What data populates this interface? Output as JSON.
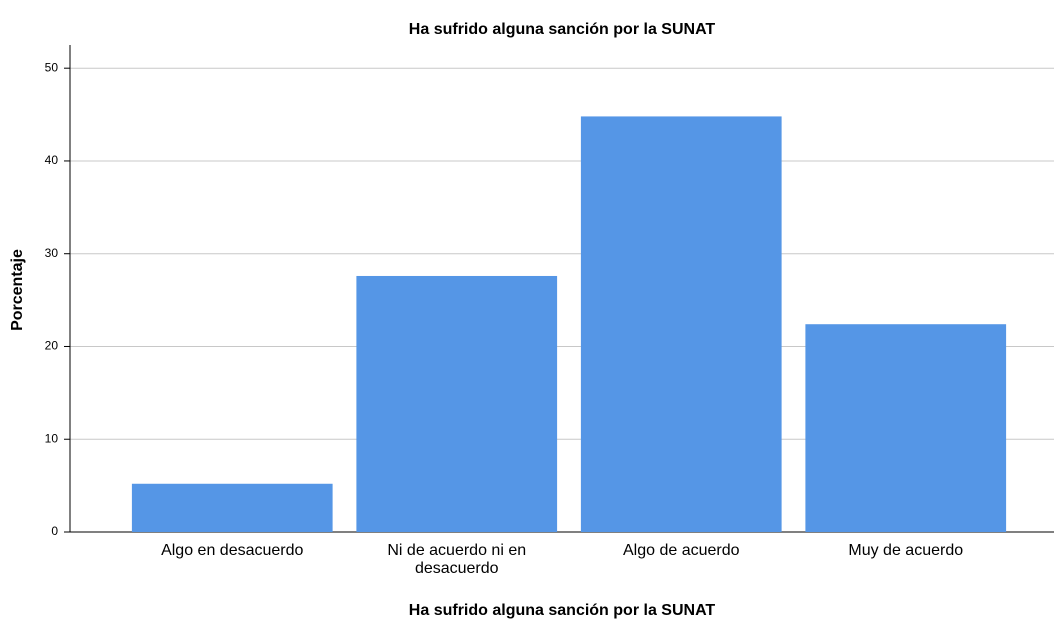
{
  "chart_data": {
    "type": "bar",
    "title": "Ha sufrido alguna sanción por la SUNAT",
    "x_label": "Ha sufrido alguna sanción por la SUNAT",
    "y_label": "Porcentaje",
    "categories": [
      "Algo en desacuerdo",
      "Ni de acuerdo ni en desacuerdo",
      "Algo de acuerdo",
      "Muy de acuerdo"
    ],
    "values": [
      5.2,
      27.6,
      44.8,
      22.4
    ],
    "color": "#5596e6",
    "ylim": [
      0,
      52.5
    ],
    "yticks": [
      0,
      10,
      20,
      30,
      40,
      50
    ],
    "grid": true
  }
}
